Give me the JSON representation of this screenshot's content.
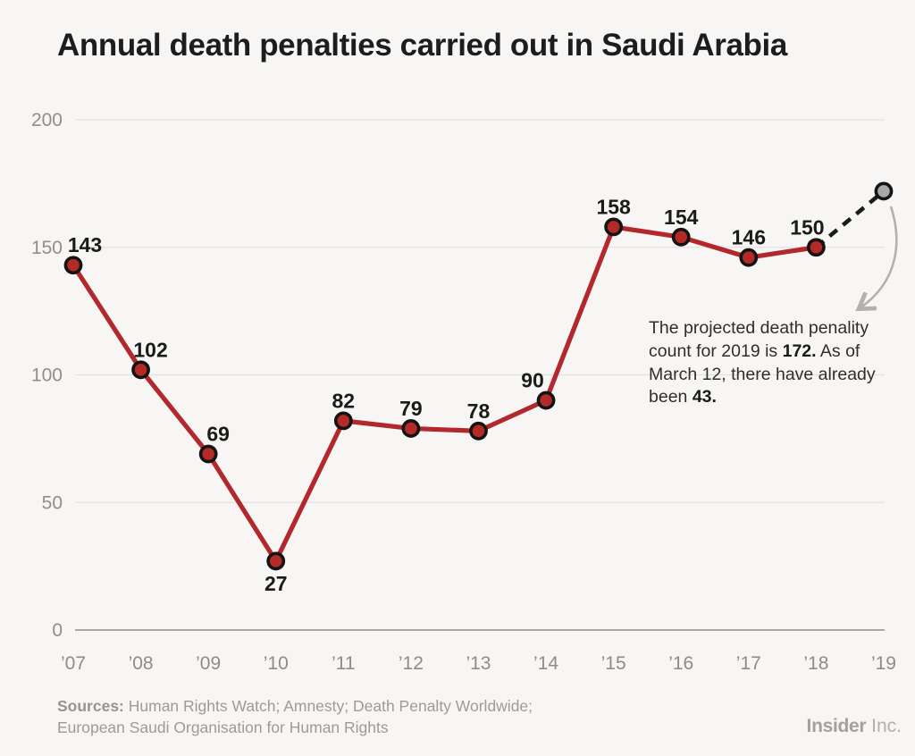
{
  "title": "Annual death penalties carried out in Saudi Arabia",
  "chart_data": {
    "type": "line",
    "title": "Annual death penalties carried out in Saudi Arabia",
    "categories": [
      "’07",
      "’08",
      "’09",
      "’10",
      "’11",
      "’12",
      "’13",
      "’14",
      "’15",
      "’16",
      "’17",
      "’18",
      "’19"
    ],
    "series": [
      {
        "name": "death-penalties-carried-out",
        "categories": [
          "’07",
          "’08",
          "’09",
          "’10",
          "’11",
          "’12",
          "’13",
          "’14",
          "’15",
          "’16",
          "’17",
          "’18"
        ],
        "values": [
          143,
          102,
          69,
          27,
          82,
          79,
          78,
          90,
          158,
          154,
          146,
          150
        ]
      }
    ],
    "projection": {
      "category": "’19",
      "value": 172,
      "line_style": "dashed",
      "point_style": "gray"
    },
    "y_ticks": [
      0,
      50,
      100,
      150,
      200
    ],
    "ylim": [
      0,
      200
    ],
    "xlabel": "",
    "ylabel": "",
    "grid": "horizontal",
    "legend": "none",
    "value_labels_shown": true,
    "value_label_dx": [
      13,
      11,
      11,
      0,
      0,
      0,
      0,
      -15,
      0,
      0,
      0,
      -10
    ],
    "value_label_below_indices": [
      3
    ],
    "colors": {
      "line": "#b2282c",
      "point_fill": "#b42a26",
      "point_stroke": "#141414",
      "projected_point_fill": "#a7a7a7",
      "dashed_line": "#1b1b1a",
      "gridline": "#e3e1e0",
      "zero_axis": "#aaa9a7",
      "tick_label": "#8f8e8d",
      "value_label": "#1b1b1a",
      "arrow": "#b3b1b0",
      "background": "#f7f6f5"
    }
  },
  "annotation": {
    "line1": "The projected death penality",
    "line2_pre": "count for 2019 is ",
    "line2_bold": "172.",
    "line2_post": " As of",
    "line3": "March 12, there have already",
    "line4_pre": "been ",
    "line4_bold": "43."
  },
  "footer": {
    "sources_label": "Sources:",
    "sources_line1": " Human Rights Watch; Amnesty; Death Penalty Worldwide;",
    "sources_line2": "European Saudi Organisation for Human Rights",
    "brand_bold": "Insider",
    "brand_light": " Inc."
  }
}
